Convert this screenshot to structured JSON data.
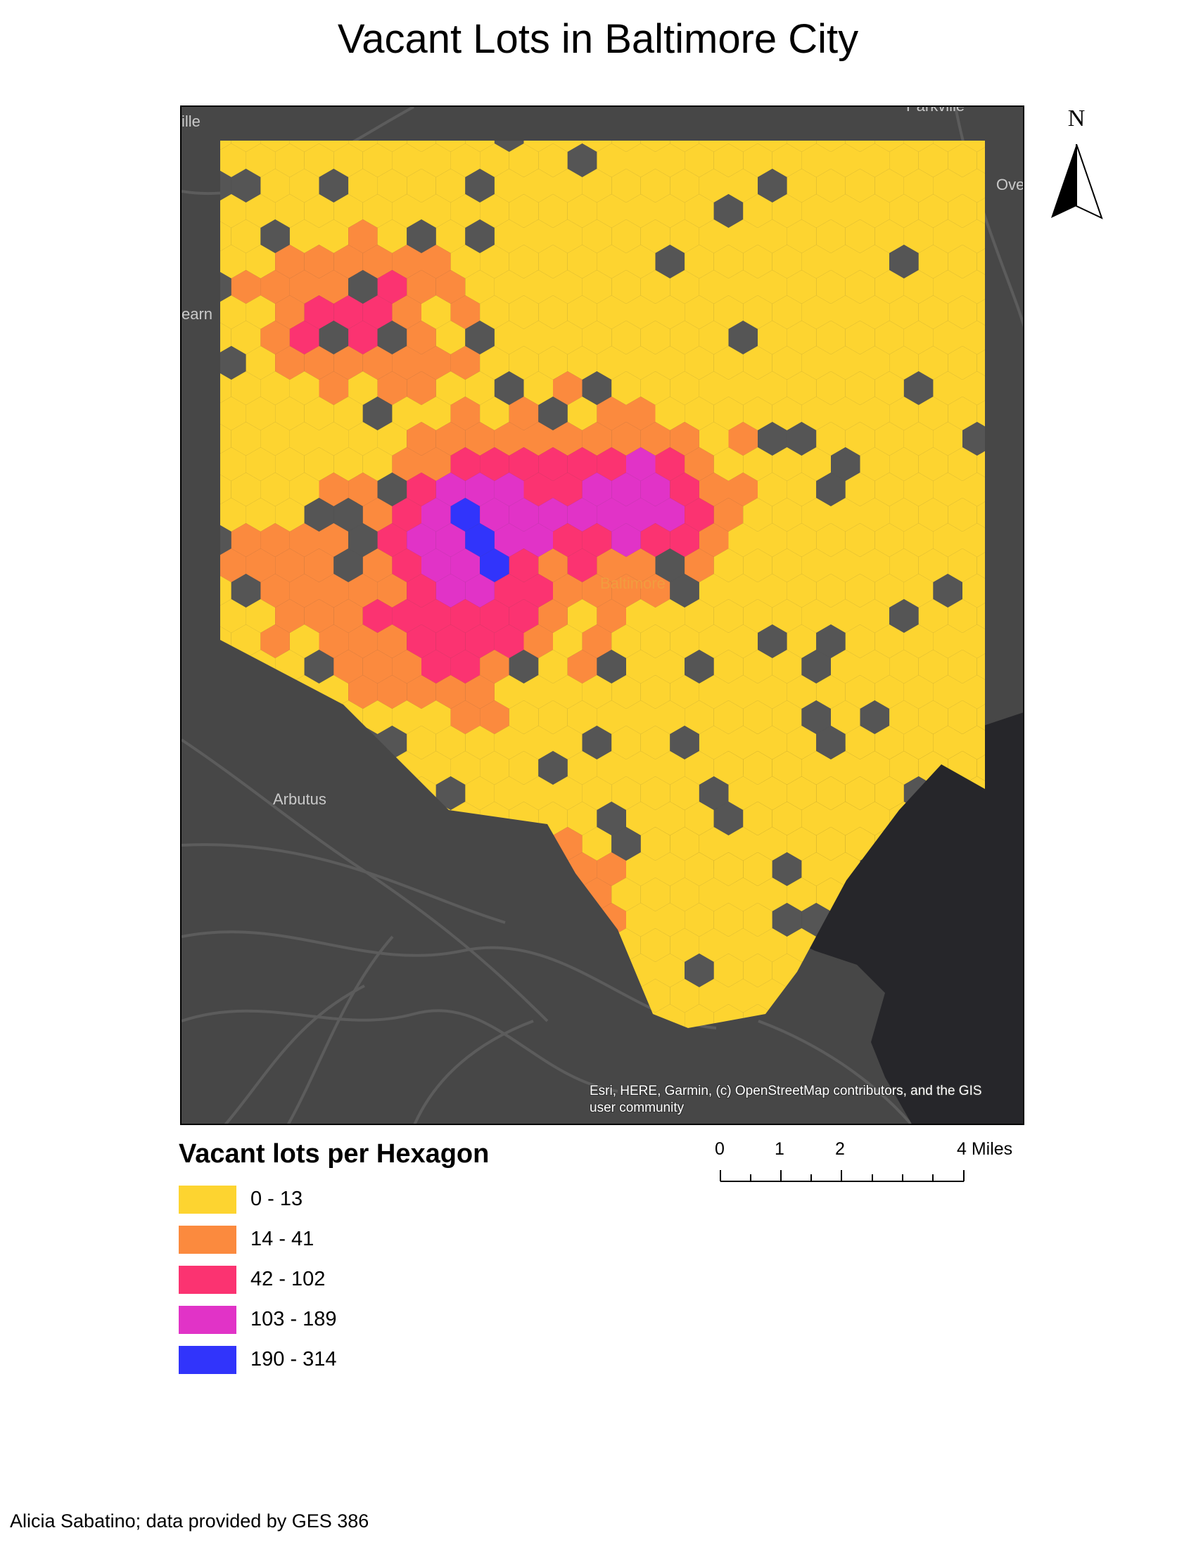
{
  "title": "Vacant Lots in Baltimore City",
  "map": {
    "place_labels": [
      "ille",
      "earn",
      "Parkville",
      "Ove",
      "Arbutus",
      "Baltimore"
    ],
    "attribution": "Esri, HERE, Garmin, (c) OpenStreetMap contributors, and the GIS user community",
    "colors": {
      "basemap": "#474747",
      "water": "#26262a",
      "roads": "#5c5c5c",
      "no_data_hex": "#555555"
    }
  },
  "north_arrow": {
    "label": "N"
  },
  "legend": {
    "title": "Vacant lots per Hexagon",
    "classes": [
      {
        "label": "0 - 13",
        "color": "#fdd430"
      },
      {
        "label": "14 - 41",
        "color": "#fb8a3e"
      },
      {
        "label": "42 - 102",
        "color": "#fb3371"
      },
      {
        "label": "103 - 189",
        "color": "#e133c7"
      },
      {
        "label": "190 - 314",
        "color": "#3134fb"
      }
    ]
  },
  "scale_bar": {
    "labels": [
      "0",
      "1",
      "2",
      "4 Miles"
    ],
    "unit": "Miles"
  },
  "credit": "Alicia Sabatino; data provided by GES 386"
}
